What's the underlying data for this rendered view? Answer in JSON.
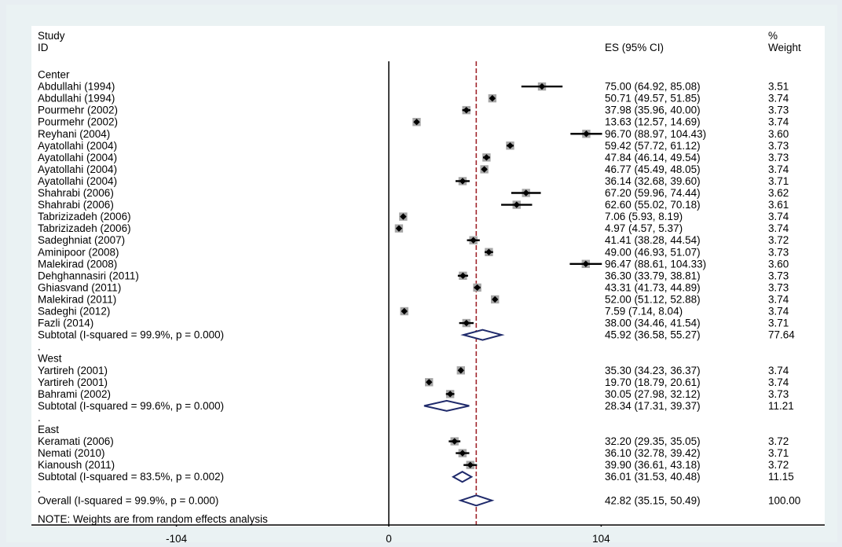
{
  "header": {
    "study": "Study",
    "id": "ID",
    "es": "ES (95% CI)",
    "pct": "%",
    "weight": "Weight"
  },
  "note": "NOTE: Weights are from random effects analysis",
  "chart_data": {
    "type": "forest",
    "x_ticks": [
      -104,
      0,
      104
    ],
    "x_tick_labels": [
      "-104",
      "0",
      "104"
    ],
    "reference_line": 42.82,
    "rows": [
      {
        "kind": "group",
        "label": "Center"
      },
      {
        "kind": "study",
        "label": "Abdullahi (1994)",
        "es": 75.0,
        "lo": 64.92,
        "hi": 85.08,
        "es_text": "75.00 (64.92, 85.08)",
        "weight": "3.51"
      },
      {
        "kind": "study",
        "label": "Abdullahi (1994)",
        "es": 50.71,
        "lo": 49.57,
        "hi": 51.85,
        "es_text": "50.71 (49.57, 51.85)",
        "weight": "3.74"
      },
      {
        "kind": "study",
        "label": "Pourmehr (2002)",
        "es": 37.98,
        "lo": 35.96,
        "hi": 40.0,
        "es_text": "37.98 (35.96, 40.00)",
        "weight": "3.73"
      },
      {
        "kind": "study",
        "label": "Pourmehr (2002)",
        "es": 13.63,
        "lo": 12.57,
        "hi": 14.69,
        "es_text": "13.63 (12.57, 14.69)",
        "weight": "3.74"
      },
      {
        "kind": "study",
        "label": "Reyhani (2004)",
        "es": 96.7,
        "lo": 88.97,
        "hi": 104.43,
        "es_text": "96.70 (88.97, 104.43)",
        "weight": "3.60"
      },
      {
        "kind": "study",
        "label": "Ayatollahi (2004)",
        "es": 59.42,
        "lo": 57.72,
        "hi": 61.12,
        "es_text": "59.42 (57.72, 61.12)",
        "weight": "3.73"
      },
      {
        "kind": "study",
        "label": "Ayatollahi (2004)",
        "es": 47.84,
        "lo": 46.14,
        "hi": 49.54,
        "es_text": "47.84 (46.14, 49.54)",
        "weight": "3.73"
      },
      {
        "kind": "study",
        "label": "Ayatollahi (2004)",
        "es": 46.77,
        "lo": 45.49,
        "hi": 48.05,
        "es_text": "46.77 (45.49, 48.05)",
        "weight": "3.74"
      },
      {
        "kind": "study",
        "label": "Ayatollahi (2004)",
        "es": 36.14,
        "lo": 32.68,
        "hi": 39.6,
        "es_text": "36.14 (32.68, 39.60)",
        "weight": "3.71"
      },
      {
        "kind": "study",
        "label": "Shahrabi (2006)",
        "es": 67.2,
        "lo": 59.96,
        "hi": 74.44,
        "es_text": "67.20 (59.96, 74.44)",
        "weight": "3.62"
      },
      {
        "kind": "study",
        "label": "Shahrabi (2006)",
        "es": 62.6,
        "lo": 55.02,
        "hi": 70.18,
        "es_text": "62.60 (55.02, 70.18)",
        "weight": "3.61"
      },
      {
        "kind": "study",
        "label": "Tabrizizadeh (2006)",
        "es": 7.06,
        "lo": 5.93,
        "hi": 8.19,
        "es_text": "7.06 (5.93, 8.19)",
        "weight": "3.74"
      },
      {
        "kind": "study",
        "label": "Tabrizizadeh (2006)",
        "es": 4.97,
        "lo": 4.57,
        "hi": 5.37,
        "es_text": "4.97 (4.57, 5.37)",
        "weight": "3.74"
      },
      {
        "kind": "study",
        "label": "Sadeghniat (2007)",
        "es": 41.41,
        "lo": 38.28,
        "hi": 44.54,
        "es_text": "41.41 (38.28, 44.54)",
        "weight": "3.72"
      },
      {
        "kind": "study",
        "label": "Aminipoor (2008)",
        "es": 49.0,
        "lo": 46.93,
        "hi": 51.07,
        "es_text": "49.00 (46.93, 51.07)",
        "weight": "3.73"
      },
      {
        "kind": "study",
        "label": "Malekirad (2008)",
        "es": 96.47,
        "lo": 88.61,
        "hi": 104.33,
        "es_text": "96.47 (88.61, 104.33)",
        "weight": "3.60"
      },
      {
        "kind": "study",
        "label": "Dehghannasiri (2011)",
        "es": 36.3,
        "lo": 33.79,
        "hi": 38.81,
        "es_text": "36.30 (33.79, 38.81)",
        "weight": "3.73"
      },
      {
        "kind": "study",
        "label": "Ghiasvand (2011)",
        "es": 43.31,
        "lo": 41.73,
        "hi": 44.89,
        "es_text": "43.31 (41.73, 44.89)",
        "weight": "3.73"
      },
      {
        "kind": "study",
        "label": "Malekirad (2011)",
        "es": 52.0,
        "lo": 51.12,
        "hi": 52.88,
        "es_text": "52.00 (51.12, 52.88)",
        "weight": "3.74"
      },
      {
        "kind": "study",
        "label": "Sadeghi (2012)",
        "es": 7.59,
        "lo": 7.14,
        "hi": 8.04,
        "es_text": "7.59 (7.14, 8.04)",
        "weight": "3.74"
      },
      {
        "kind": "study",
        "label": "Fazli (2014)",
        "es": 38.0,
        "lo": 34.46,
        "hi": 41.54,
        "es_text": "38.00 (34.46, 41.54)",
        "weight": "3.71"
      },
      {
        "kind": "subtotal",
        "label": "Subtotal  (I-squared = 99.9%, p = 0.000)",
        "es": 45.92,
        "lo": 36.58,
        "hi": 55.27,
        "es_text": "45.92 (36.58, 55.27)",
        "weight": "77.64"
      },
      {
        "kind": "spacer",
        "label": "."
      },
      {
        "kind": "group",
        "label": "West"
      },
      {
        "kind": "study",
        "label": "Yartireh (2001)",
        "es": 35.3,
        "lo": 34.23,
        "hi": 36.37,
        "es_text": "35.30 (34.23, 36.37)",
        "weight": "3.74"
      },
      {
        "kind": "study",
        "label": "Yartireh (2001)",
        "es": 19.7,
        "lo": 18.79,
        "hi": 20.61,
        "es_text": "19.70 (18.79, 20.61)",
        "weight": "3.74"
      },
      {
        "kind": "study",
        "label": "Bahrami (2002)",
        "es": 30.05,
        "lo": 27.98,
        "hi": 32.12,
        "es_text": "30.05 (27.98, 32.12)",
        "weight": "3.73"
      },
      {
        "kind": "subtotal",
        "label": "Subtotal  (I-squared = 99.6%, p = 0.000)",
        "es": 28.34,
        "lo": 17.31,
        "hi": 39.37,
        "es_text": "28.34 (17.31, 39.37)",
        "weight": "11.21"
      },
      {
        "kind": "spacer",
        "label": "."
      },
      {
        "kind": "group",
        "label": "East"
      },
      {
        "kind": "study",
        "label": "Keramati (2006)",
        "es": 32.2,
        "lo": 29.35,
        "hi": 35.05,
        "es_text": "32.20 (29.35, 35.05)",
        "weight": "3.72"
      },
      {
        "kind": "study",
        "label": "Nemati (2010)",
        "es": 36.1,
        "lo": 32.78,
        "hi": 39.42,
        "es_text": "36.10 (32.78, 39.42)",
        "weight": "3.71"
      },
      {
        "kind": "study",
        "label": "Kianoush (2011)",
        "es": 39.9,
        "lo": 36.61,
        "hi": 43.18,
        "es_text": "39.90 (36.61, 43.18)",
        "weight": "3.72"
      },
      {
        "kind": "subtotal",
        "label": "Subtotal  (I-squared = 83.5%, p = 0.002)",
        "es": 36.01,
        "lo": 31.53,
        "hi": 40.48,
        "es_text": "36.01 (31.53, 40.48)",
        "weight": "11.15"
      },
      {
        "kind": "spacer",
        "label": "."
      },
      {
        "kind": "overall",
        "label": "Overall  (I-squared = 99.9%, p = 0.000)",
        "es": 42.82,
        "lo": 35.15,
        "hi": 50.49,
        "es_text": "42.82 (35.15, 50.49)",
        "weight": "100.00"
      }
    ],
    "colors": {
      "marker": "#000000",
      "box": "#a6a6a6",
      "diamond": "#1f2a6b",
      "reference": "#a0262c",
      "axis": "#000000"
    }
  }
}
